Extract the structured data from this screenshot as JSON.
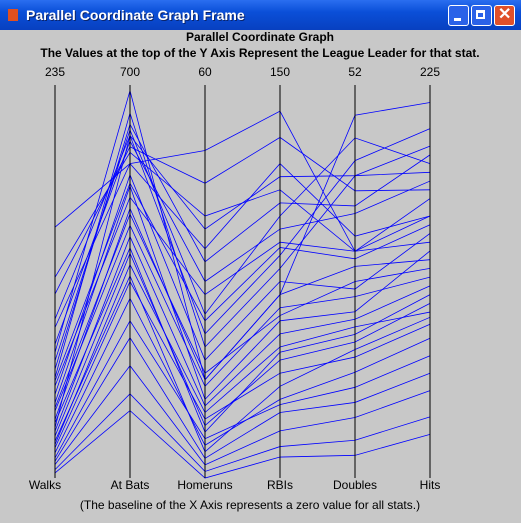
{
  "window": {
    "title": "Parallel Coordinate Graph Frame"
  },
  "chart_data": {
    "type": "parallel",
    "title": "Parallel Coordinate Graph",
    "subtitle": "The Values at the top of the Y Axis Represent the League Leader for that stat.",
    "note": "(The baseline of the X Axis represents a zero value for all stats.)",
    "color": "#0000ff",
    "axes": [
      {
        "name": "Walks",
        "ylim": [
          0,
          235
        ]
      },
      {
        "name": "At Bats",
        "ylim": [
          0,
          700
        ]
      },
      {
        "name": "Homeruns",
        "ylim": [
          0,
          60
        ]
      },
      {
        "name": "RBIs",
        "ylim": [
          0,
          150
        ]
      },
      {
        "name": "Doubles",
        "ylim": [
          0,
          52
        ]
      },
      {
        "name": "Hits",
        "ylim": [
          0,
          225
        ]
      }
    ],
    "lines": [
      [
        45,
        520,
        12,
        60,
        22,
        130
      ],
      [
        80,
        600,
        30,
        95,
        35,
        170
      ],
      [
        10,
        250,
        3,
        25,
        10,
        60
      ],
      [
        120,
        580,
        40,
        110,
        30,
        160
      ],
      [
        25,
        400,
        8,
        45,
        18,
        100
      ],
      [
        60,
        650,
        20,
        80,
        40,
        190
      ],
      [
        5,
        150,
        1,
        12,
        5,
        35
      ],
      [
        35,
        480,
        15,
        70,
        28,
        125
      ],
      [
        90,
        560,
        35,
        120,
        32,
        150
      ],
      [
        15,
        320,
        5,
        30,
        14,
        80
      ],
      [
        70,
        620,
        25,
        100,
        45,
        180
      ],
      [
        20,
        380,
        10,
        50,
        20,
        95
      ],
      [
        50,
        540,
        18,
        75,
        25,
        140
      ],
      [
        110,
        590,
        45,
        130,
        38,
        165
      ],
      [
        8,
        200,
        2,
        18,
        8,
        50
      ],
      [
        40,
        450,
        14,
        65,
        24,
        115
      ],
      [
        30,
        610,
        22,
        85,
        42,
        200
      ],
      [
        55,
        500,
        28,
        90,
        30,
        135
      ],
      [
        12,
        280,
        6,
        28,
        12,
        70
      ],
      [
        65,
        630,
        33,
        105,
        36,
        185
      ],
      [
        18,
        350,
        9,
        40,
        16,
        88
      ],
      [
        28,
        430,
        11,
        55,
        21,
        110
      ],
      [
        150,
        560,
        50,
        140,
        30,
        150
      ],
      [
        75,
        690,
        15,
        70,
        48,
        215
      ],
      [
        3,
        120,
        0,
        8,
        3,
        25
      ],
      [
        42,
        470,
        16,
        62,
        26,
        120
      ],
      [
        95,
        610,
        38,
        115,
        40,
        175
      ],
      [
        22,
        360,
        4,
        35,
        17,
        92
      ],
      [
        58,
        525,
        24,
        88,
        29,
        145
      ],
      [
        33,
        410,
        7,
        48,
        19,
        105
      ]
    ]
  }
}
